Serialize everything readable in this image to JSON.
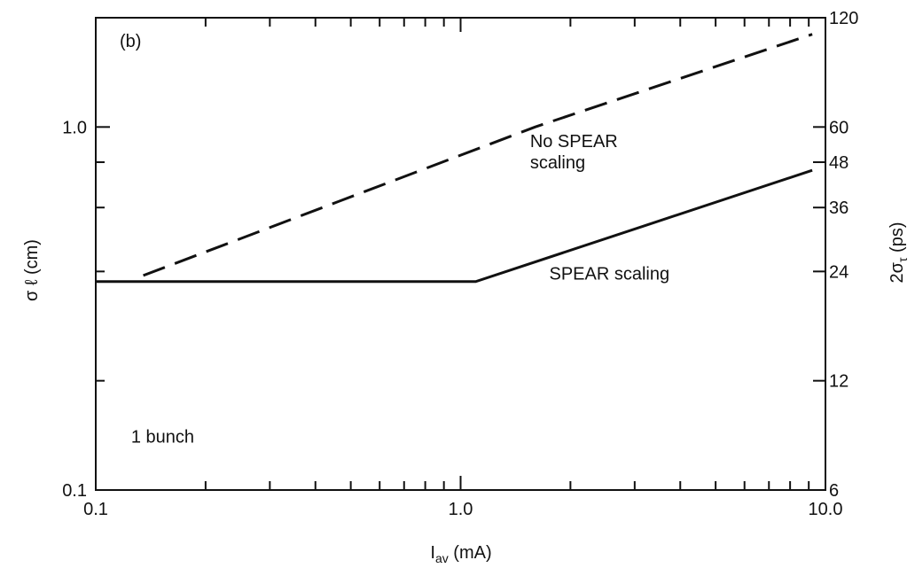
{
  "chart_data": {
    "type": "line",
    "panel_label": "(b)",
    "xlabel_base": "I",
    "xlabel_sub": "av",
    "xlabel_unit": " (mA)",
    "ylabel_left": "σ ℓ (cm)",
    "ylabel_right_base": "2σ",
    "ylabel_right_sub": "τ",
    "ylabel_right_unit": " (ps)",
    "x_scale": "log",
    "y_scale": "log",
    "xlim": [
      0.1,
      10.0
    ],
    "ylim": [
      0.1,
      2.0
    ],
    "x_tick_labels": [
      {
        "value": 0.1,
        "label": "0.1"
      },
      {
        "value": 1.0,
        "label": "1.0"
      },
      {
        "value": 10.0,
        "label": "10.0"
      }
    ],
    "y_tick_labels_left": [
      {
        "value": 0.1,
        "label": "0.1"
      },
      {
        "value": 1.0,
        "label": "1.0"
      }
    ],
    "y_tick_labels_right": [
      {
        "value": 0.1,
        "label": "6"
      },
      {
        "value": 0.2,
        "label": "12"
      },
      {
        "value": 0.4,
        "label": "24"
      },
      {
        "value": 0.6,
        "label": "36"
      },
      {
        "value": 0.8,
        "label": "48"
      },
      {
        "value": 1.0,
        "label": "60"
      },
      {
        "value": 2.0,
        "label": "120"
      }
    ],
    "series": [
      {
        "name": "No SPEAR scaling",
        "style": "dashed",
        "x": [
          0.135,
          1.6,
          9.2
        ],
        "y": [
          0.39,
          1.0,
          1.8
        ]
      },
      {
        "name": "SPEAR scaling",
        "style": "solid",
        "x": [
          0.1,
          1.1,
          9.2
        ],
        "y": [
          0.375,
          0.375,
          0.76
        ]
      }
    ],
    "annotations": [
      {
        "text_lines": [
          "No SPEAR",
          "scaling"
        ],
        "x": 1.55,
        "y": 0.88
      },
      {
        "text_lines": [
          "SPEAR scaling"
        ],
        "x": 1.75,
        "y": 0.38
      },
      {
        "text_lines": [
          "1 bunch"
        ],
        "x": 0.125,
        "y": 0.135
      }
    ],
    "colors": {
      "line": "#111111",
      "background": "#ffffff"
    }
  }
}
